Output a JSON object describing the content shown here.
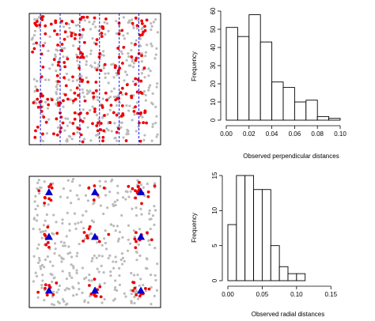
{
  "chart_data": [
    {
      "type": "scatter",
      "panel": "line-transect-map",
      "xlim": [
        0,
        1
      ],
      "ylim": [
        0,
        1
      ],
      "transect_lines_x": [
        0.085,
        0.235,
        0.385,
        0.535,
        0.685,
        0.835
      ],
      "series": [
        {
          "role": "undetected",
          "color": "#bbbbbb",
          "n_points": 330,
          "seed": 11
        },
        {
          "role": "detected",
          "color": "#ee0000",
          "n_points": 220,
          "seed": 23
        }
      ]
    },
    {
      "type": "bar",
      "panel": "perpendicular-histogram",
      "xlabel": "Observed perpendicular distances",
      "ylabel": "Frequency",
      "xlim": [
        0,
        0.1
      ],
      "ylim": [
        0,
        60
      ],
      "x_ticks": [
        "0.00",
        "0.02",
        "0.04",
        "0.06",
        "0.08",
        "0.10"
      ],
      "x_tick_values": [
        0,
        0.02,
        0.04,
        0.06,
        0.08,
        0.1
      ],
      "y_ticks": [
        "0",
        "10",
        "20",
        "30",
        "40",
        "50",
        "60"
      ],
      "y_tick_values": [
        0,
        10,
        20,
        30,
        40,
        50,
        60
      ],
      "bin_edges": [
        0,
        0.01,
        0.02,
        0.03,
        0.04,
        0.05,
        0.06,
        0.07,
        0.08,
        0.09,
        0.1
      ],
      "values": [
        51,
        46,
        58,
        43,
        21,
        18,
        10,
        11,
        2,
        1
      ]
    },
    {
      "type": "scatter",
      "panel": "point-transect-map",
      "xlim": [
        0,
        1
      ],
      "ylim": [
        0,
        1
      ],
      "points_grid_x": [
        0.15,
        0.5,
        0.85
      ],
      "points_grid_y": [
        0.12,
        0.46,
        0.87
      ],
      "series": [
        {
          "role": "undetected",
          "color": "#bbbbbb",
          "n_points": 330,
          "seed": 37
        },
        {
          "role": "detected",
          "color": "#ee0000",
          "n_points": 85,
          "seed": 41
        },
        {
          "role": "point-transects",
          "color": "#0000cc",
          "marker": "triangle"
        }
      ]
    },
    {
      "type": "bar",
      "panel": "radial-histogram",
      "xlabel": "Observed radial distances",
      "ylabel": "Frequency",
      "xlim": [
        0,
        0.175
      ],
      "ylim": [
        0,
        15
      ],
      "x_ticks": [
        "0.00",
        "0.05",
        "0.10",
        "0.15"
      ],
      "x_tick_values": [
        0,
        0.05,
        0.1,
        0.15
      ],
      "y_ticks": [
        "0",
        "5",
        "10",
        "15"
      ],
      "y_tick_values": [
        0,
        5,
        10,
        15
      ],
      "bin_edges": [
        0,
        0.0125,
        0.025,
        0.0375,
        0.05,
        0.0625,
        0.075,
        0.0875,
        0.1,
        0.1125,
        0.125,
        0.1375,
        0.15,
        0.1625,
        0.175
      ],
      "values": [
        8,
        15,
        15,
        13,
        13,
        5,
        2,
        1,
        1,
        0,
        0,
        0,
        0,
        0
      ]
    }
  ]
}
